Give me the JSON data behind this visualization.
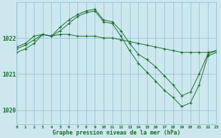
{
  "title": "Graphe pression niveau de la mer (hPa)",
  "background_color": "#cce8ee",
  "plot_bg_color": "#cce8ee",
  "grid_color": "#88bbcc",
  "line_color": "#1a6b2a",
  "xlim": [
    0,
    23
  ],
  "ylim": [
    1019.6,
    1023.0
  ],
  "yticks": [
    1020,
    1021,
    1022
  ],
  "xtick_labels": [
    "0",
    "1",
    "2",
    "3",
    "4",
    "5",
    "6",
    "7",
    "8",
    "9",
    "10",
    "11",
    "12",
    "13",
    "14",
    "15",
    "16",
    "17",
    "18",
    "19",
    "20",
    "21",
    "22",
    "23"
  ],
  "series": [
    {
      "x": [
        0,
        1,
        2,
        3,
        4,
        5,
        6,
        7,
        8,
        9,
        10,
        11,
        12,
        13,
        14,
        15,
        16,
        17,
        18,
        19,
        20,
        21,
        22,
        23
      ],
      "y": [
        1021.75,
        1021.85,
        1022.05,
        1022.1,
        1022.05,
        1022.1,
        1022.1,
        1022.05,
        1022.05,
        1022.05,
        1022.0,
        1022.0,
        1021.95,
        1021.9,
        1021.85,
        1021.8,
        1021.75,
        1021.7,
        1021.65,
        1021.6,
        1021.6,
        1021.6,
        1021.6,
        1021.65
      ]
    },
    {
      "x": [
        0,
        1,
        2,
        3,
        4,
        5,
        6,
        7,
        8,
        9,
        10,
        11,
        12,
        13,
        14,
        15,
        16,
        17,
        18,
        19,
        20,
        21,
        22,
        23
      ],
      "y": [
        1021.7,
        1021.8,
        1021.95,
        1022.1,
        1022.05,
        1022.3,
        1022.5,
        1022.65,
        1022.75,
        1022.8,
        1022.5,
        1022.45,
        1022.2,
        1021.85,
        1021.55,
        1021.4,
        1021.2,
        1020.95,
        1020.7,
        1020.4,
        1020.5,
        1021.0,
        1021.55,
        1021.65
      ]
    },
    {
      "x": [
        0,
        1,
        2,
        3,
        4,
        5,
        6,
        7,
        8,
        9,
        10,
        11,
        12,
        13,
        14,
        15,
        16,
        17,
        18,
        19,
        20,
        21,
        22,
        23
      ],
      "y": [
        1021.6,
        1021.7,
        1021.85,
        1022.1,
        1022.05,
        1022.2,
        1022.4,
        1022.6,
        1022.7,
        1022.75,
        1022.45,
        1022.4,
        1022.05,
        1021.65,
        1021.3,
        1021.05,
        1020.8,
        1020.55,
        1020.35,
        1020.1,
        1020.2,
        1020.7,
        1021.5,
        1021.6
      ]
    }
  ]
}
